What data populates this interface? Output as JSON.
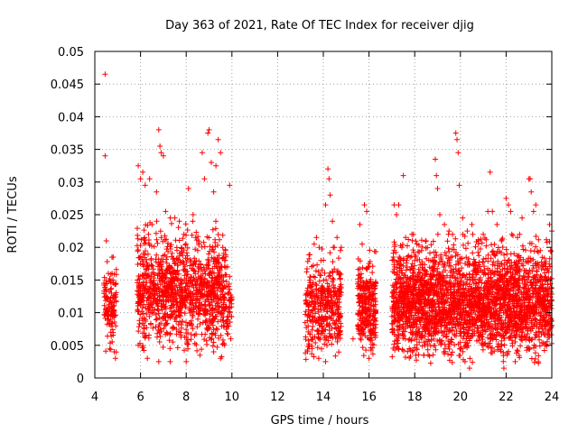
{
  "chart_data": {
    "type": "scatter",
    "title": "Day 363 of 2021, Rate Of TEC Index for receiver djig",
    "xlabel": "GPS time / hours",
    "ylabel": "ROTI / TECUs",
    "xlim": [
      4,
      24
    ],
    "ylim": [
      0,
      0.05
    ],
    "xticks": [
      4,
      6,
      8,
      10,
      12,
      14,
      16,
      18,
      20,
      22,
      24
    ],
    "xtick_labels": [
      "4",
      "6",
      "8",
      "10",
      "12",
      "14",
      "16",
      "18",
      "20",
      "22",
      "24"
    ],
    "yticks": [
      0,
      0.005,
      0.01,
      0.015,
      0.02,
      0.025,
      0.03,
      0.035,
      0.04,
      0.045,
      0.05
    ],
    "ytick_labels": [
      "0",
      "0.005",
      "0.01",
      "0.015",
      "0.02",
      "0.025",
      "0.03",
      "0.035",
      "0.04",
      "0.045",
      "0.05"
    ],
    "grid": true,
    "marker": "+",
    "marker_color": "#ff0000",
    "series": [
      {
        "name": "ROTI",
        "points": [
          [
            4.45,
            0.0465
          ],
          [
            4.45,
            0.034
          ],
          [
            4.5,
            0.021
          ],
          [
            4.4,
            0.0145
          ],
          [
            4.55,
            0.012
          ],
          [
            4.6,
            0.009
          ],
          [
            4.7,
            0.007
          ],
          [
            4.75,
            0.0185
          ],
          [
            4.8,
            0.015
          ],
          [
            4.85,
            0.004
          ],
          [
            5.9,
            0.0325
          ],
          [
            6.0,
            0.0305
          ],
          [
            6.1,
            0.0315
          ],
          [
            6.2,
            0.0295
          ],
          [
            6.4,
            0.0305
          ],
          [
            6.5,
            0.0235
          ],
          [
            6.7,
            0.0285
          ],
          [
            6.8,
            0.038
          ],
          [
            6.85,
            0.0355
          ],
          [
            6.9,
            0.0345
          ],
          [
            7.0,
            0.034
          ],
          [
            7.1,
            0.0255
          ],
          [
            7.3,
            0.0245
          ],
          [
            7.5,
            0.0245
          ],
          [
            7.7,
            0.024
          ],
          [
            7.9,
            0.022
          ],
          [
            8.1,
            0.029
          ],
          [
            8.3,
            0.025
          ],
          [
            8.5,
            0.0195
          ],
          [
            8.7,
            0.0345
          ],
          [
            8.8,
            0.0305
          ],
          [
            8.95,
            0.0375
          ],
          [
            9.0,
            0.038
          ],
          [
            9.1,
            0.033
          ],
          [
            9.2,
            0.0285
          ],
          [
            9.3,
            0.0325
          ],
          [
            9.4,
            0.0365
          ],
          [
            9.5,
            0.0345
          ],
          [
            9.6,
            0.02
          ],
          [
            9.9,
            0.0295
          ],
          [
            9.9,
            0.0155
          ],
          [
            9.95,
            0.006
          ],
          [
            13.3,
            0.0115
          ],
          [
            13.4,
            0.0095
          ],
          [
            13.5,
            0.014
          ],
          [
            13.6,
            0.0205
          ],
          [
            13.7,
            0.0215
          ],
          [
            13.9,
            0.018
          ],
          [
            14.0,
            0.0115
          ],
          [
            14.1,
            0.0265
          ],
          [
            14.2,
            0.032
          ],
          [
            14.25,
            0.0305
          ],
          [
            14.3,
            0.028
          ],
          [
            14.4,
            0.024
          ],
          [
            14.6,
            0.0215
          ],
          [
            14.7,
            0.0125
          ],
          [
            14.75,
            0.0195
          ],
          [
            15.6,
            0.0235
          ],
          [
            15.7,
            0.0205
          ],
          [
            15.8,
            0.0265
          ],
          [
            15.9,
            0.0255
          ],
          [
            16.0,
            0.0175
          ],
          [
            16.1,
            0.0105
          ],
          [
            16.2,
            0.0075
          ],
          [
            17.1,
            0.0265
          ],
          [
            17.2,
            0.025
          ],
          [
            17.3,
            0.0265
          ],
          [
            17.5,
            0.031
          ],
          [
            17.6,
            0.0215
          ],
          [
            17.8,
            0.0185
          ],
          [
            18.1,
            0.0205
          ],
          [
            18.3,
            0.0195
          ],
          [
            18.5,
            0.021
          ],
          [
            18.7,
            0.018
          ],
          [
            18.9,
            0.0335
          ],
          [
            18.95,
            0.031
          ],
          [
            19.0,
            0.029
          ],
          [
            19.1,
            0.025
          ],
          [
            19.3,
            0.0235
          ],
          [
            19.5,
            0.0225
          ],
          [
            19.8,
            0.0375
          ],
          [
            19.85,
            0.0365
          ],
          [
            19.9,
            0.0345
          ],
          [
            19.95,
            0.0295
          ],
          [
            20.1,
            0.0245
          ],
          [
            20.3,
            0.0225
          ],
          [
            20.5,
            0.0235
          ],
          [
            20.8,
            0.021
          ],
          [
            21.0,
            0.022
          ],
          [
            21.2,
            0.0255
          ],
          [
            21.3,
            0.0315
          ],
          [
            21.4,
            0.0255
          ],
          [
            21.6,
            0.0235
          ],
          [
            21.8,
            0.021
          ],
          [
            22.0,
            0.0275
          ],
          [
            22.1,
            0.0265
          ],
          [
            22.2,
            0.0255
          ],
          [
            22.5,
            0.0215
          ],
          [
            22.7,
            0.0245
          ],
          [
            23.0,
            0.0305
          ],
          [
            23.05,
            0.0305
          ],
          [
            23.1,
            0.0285
          ],
          [
            23.2,
            0.0255
          ],
          [
            23.3,
            0.0265
          ],
          [
            23.5,
            0.0195
          ],
          [
            23.7,
            0.0175
          ],
          [
            23.9,
            0.0235
          ],
          [
            24.0,
            0.0225
          ],
          [
            23.95,
            0.0195
          ],
          [
            20.4,
            0.0015
          ],
          [
            21.9,
            0.0015
          ],
          [
            20.2,
            0.0025
          ],
          [
            22.4,
            0.0025
          ],
          [
            19.6,
            0.0035
          ],
          [
            18.4,
            0.0035
          ],
          [
            17.9,
            0.004
          ],
          [
            16.0,
            0.003
          ],
          [
            15.3,
            0.006
          ],
          [
            14.1,
            0.0025
          ],
          [
            13.8,
            0.003
          ],
          [
            13.5,
            0.0045
          ],
          [
            9.5,
            0.003
          ],
          [
            9.2,
            0.004
          ],
          [
            8.6,
            0.0035
          ],
          [
            8.0,
            0.0025
          ],
          [
            7.3,
            0.0025
          ],
          [
            6.8,
            0.0025
          ],
          [
            6.3,
            0.003
          ],
          [
            5.9,
            0.005
          ],
          [
            4.9,
            0.003
          ]
        ]
      }
    ],
    "clusters": [
      {
        "x": [
          4.4,
          4.95
        ],
        "ymin": 0.003,
        "ymax": 0.019,
        "n": 120
      },
      {
        "x": [
          5.85,
          9.75
        ],
        "ymin": 0.0025,
        "ymax": 0.024,
        "n": 1100
      },
      {
        "x": [
          9.75,
          10.0
        ],
        "ymin": 0.005,
        "ymax": 0.017,
        "n": 40
      },
      {
        "x": [
          13.2,
          14.8
        ],
        "ymin": 0.002,
        "ymax": 0.02,
        "n": 380
      },
      {
        "x": [
          15.5,
          16.3
        ],
        "ymin": 0.0025,
        "ymax": 0.02,
        "n": 260
      },
      {
        "x": [
          17.0,
          24.0
        ],
        "ymin": 0.0015,
        "ymax": 0.022,
        "n": 2600
      }
    ]
  }
}
